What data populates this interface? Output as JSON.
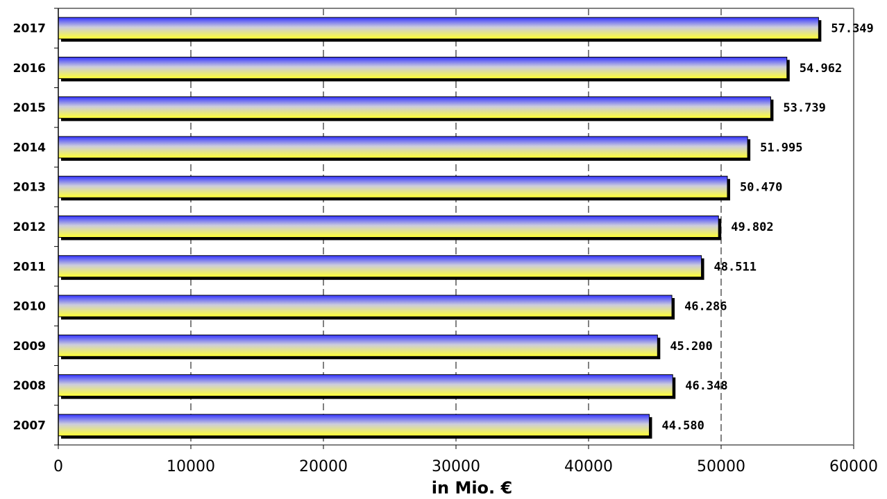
{
  "chart_data": {
    "type": "bar",
    "orientation": "horizontal",
    "categories": [
      "2017",
      "2016",
      "2015",
      "2014",
      "2013",
      "2012",
      "2011",
      "2010",
      "2009",
      "2008",
      "2007"
    ],
    "values": [
      57349,
      54962,
      53739,
      51995,
      50470,
      49802,
      48511,
      46286,
      45200,
      46348,
      44580
    ],
    "value_labels": [
      "57.349",
      "54.962",
      "53.739",
      "51.995",
      "50.470",
      "49.802",
      "48.511",
      "46.286",
      "45.200",
      "46.348",
      "44.580"
    ],
    "title": "",
    "xlabel": "in Mio. €",
    "ylabel": "",
    "xlim": [
      0,
      60000
    ],
    "xticks": [
      0,
      10000,
      20000,
      30000,
      40000,
      50000,
      60000
    ],
    "xtick_labels": [
      "0",
      "10000",
      "20000",
      "30000",
      "40000",
      "50000",
      "60000"
    ],
    "grid": "vertical dashed",
    "legend": "none",
    "colors": {
      "bar_top": "#3333ff",
      "bar_mid": "#ccccdd",
      "bar_bottom": "#ffff33",
      "shadow": "#000000",
      "frame": "#808080",
      "grid": "#000000"
    }
  }
}
